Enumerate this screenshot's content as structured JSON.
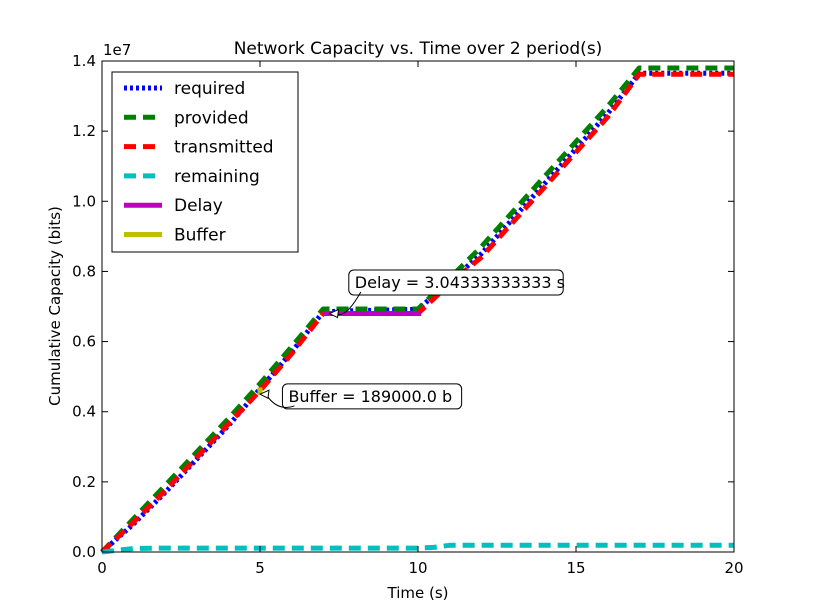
{
  "chart_data": {
    "type": "line",
    "title": "Network Capacity vs. Time over 2 period(s)",
    "xlabel": "Time (s)",
    "ylabel": "Cumulative Capacity (bits)",
    "y_multiplier_label": "1e7",
    "xlim": [
      0,
      20
    ],
    "ylim": [
      0,
      14000000
    ],
    "x_ticks": [
      0,
      5,
      10,
      15,
      20
    ],
    "x_tick_labels": [
      "0",
      "5",
      "10",
      "15",
      "20"
    ],
    "y_ticks": [
      0,
      2000000,
      4000000,
      6000000,
      8000000,
      10000000,
      12000000,
      14000000
    ],
    "y_tick_labels": [
      "0.0",
      "0.2",
      "0.4",
      "0.6",
      "0.8",
      "1.0",
      "1.2",
      "1.4"
    ],
    "grid": false,
    "legend_position": "top-left",
    "series": [
      {
        "name": "required",
        "color": "#0000ff",
        "style": "dotted",
        "x": [
          0,
          1,
          2,
          3,
          4,
          5,
          6,
          7,
          8,
          9,
          10,
          11,
          12,
          13,
          14,
          15,
          16,
          17,
          18,
          19,
          20
        ],
        "y": [
          0,
          800000,
          1700000,
          2650000,
          3600000,
          4650000,
          5700000,
          6850000,
          6880000,
          6900000,
          6920000,
          7700000,
          8500000,
          9500000,
          10500000,
          11500000,
          12500000,
          13650000,
          13650000,
          13650000,
          13650000
        ]
      },
      {
        "name": "provided",
        "color": "#008000",
        "style": "dashed",
        "x": [
          0,
          1,
          2,
          3,
          4,
          5,
          6,
          7,
          8,
          9,
          10,
          11,
          12,
          13,
          14,
          15,
          16,
          17,
          18,
          19,
          20
        ],
        "y": [
          0,
          950000,
          1900000,
          2850000,
          3800000,
          4800000,
          5850000,
          6930000,
          6930000,
          6930000,
          6930000,
          7800000,
          8700000,
          9700000,
          10700000,
          11700000,
          12700000,
          13800000,
          13800000,
          13800000,
          13800000
        ]
      },
      {
        "name": "transmitted",
        "color": "#ff0000",
        "style": "dashed",
        "x": [
          0,
          1,
          2,
          3,
          4,
          5,
          6,
          7,
          8,
          9,
          10,
          11,
          12,
          13,
          14,
          15,
          16,
          17,
          18,
          19,
          20
        ],
        "y": [
          0,
          850000,
          1750000,
          2700000,
          3650000,
          4600000,
          5650000,
          6800000,
          6800000,
          6800000,
          6800000,
          7650000,
          8400000,
          9400000,
          10400000,
          11400000,
          12400000,
          13620000,
          13620000,
          13620000,
          13620000
        ]
      },
      {
        "name": "remaining",
        "color": "#00bfbf",
        "style": "dashed",
        "x": [
          0,
          1,
          2,
          3,
          4,
          5,
          6,
          7,
          8,
          9,
          10,
          10.5,
          11,
          12,
          13,
          14,
          15,
          16,
          17,
          18,
          19,
          20
        ],
        "y": [
          0,
          100000,
          110000,
          110000,
          110000,
          110000,
          110000,
          110000,
          110000,
          110000,
          110000,
          130000,
          190000,
          190000,
          190000,
          190000,
          190000,
          190000,
          190000,
          190000,
          190000,
          190000
        ]
      },
      {
        "name": "Delay",
        "color": "#bf00bf",
        "style": "solid",
        "x": [
          7,
          10.1
        ],
        "y": [
          6800000,
          6800000
        ]
      },
      {
        "name": "Buffer",
        "color": "#bfbf00",
        "style": "solid",
        "x": [
          5,
          5
        ],
        "y": [
          4500000,
          4690000
        ]
      }
    ],
    "annotations": [
      {
        "text": "Delay = 3.04333333333 s",
        "point_x": 7.2,
        "point_y": 6800000,
        "text_x": 8.0,
        "text_y": 7700000
      },
      {
        "text": "Buffer = 189000.0 b",
        "point_x": 5.0,
        "point_y": 4500000,
        "text_x": 5.9,
        "text_y": 4450000
      }
    ]
  }
}
